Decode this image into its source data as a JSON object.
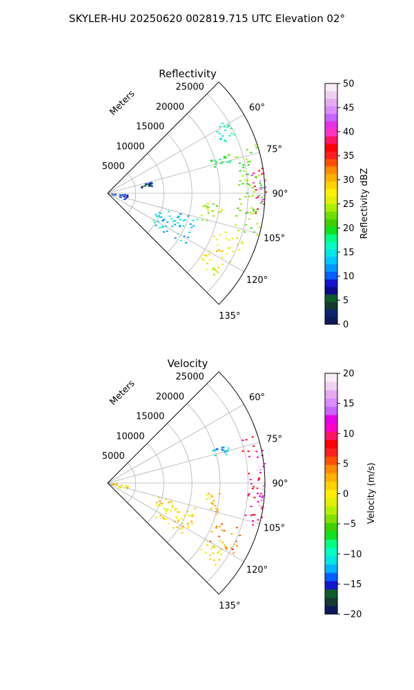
{
  "suptitle": "SKYLER-HU  20250620  002819.715 UTC Elevation 02°",
  "chart_data": [
    {
      "type": "heatmap",
      "projection": "polar-sector",
      "title": "Reflectivity",
      "radial_label": "Meters",
      "range_ticks": [
        5000,
        10000,
        15000,
        20000,
        25000
      ],
      "range_tick_labels": [
        "5000",
        "10000",
        "15000",
        "20000",
        "25000"
      ],
      "rmax": 28000,
      "azimuth_range_deg": [
        45,
        135
      ],
      "azimuth_ticks_deg": [
        60,
        75,
        90,
        105,
        120,
        135
      ],
      "azimuth_tick_labels": [
        "60°",
        "75°",
        "90°",
        "105°",
        "120°",
        "135°"
      ],
      "grid": true,
      "colorbar": {
        "label": "Reflectivity dBZ",
        "min": 0,
        "max": 50,
        "ticks": [
          0,
          5,
          10,
          15,
          20,
          25,
          30,
          35,
          40,
          45,
          50
        ],
        "tick_labels": [
          "0",
          "5",
          "10",
          "15",
          "20",
          "25",
          "30",
          "35",
          "40",
          "45",
          "50"
        ],
        "colors": [
          "#0a1a5a",
          "#0c2470",
          "#123a32",
          "#0f5a2a",
          "#0a0a8a",
          "#1414cc",
          "#0060ff",
          "#0096ff",
          "#00c8ff",
          "#00e6e6",
          "#00ffc0",
          "#00ff80",
          "#10e020",
          "#40d000",
          "#70e000",
          "#a8f000",
          "#e0f000",
          "#fff000",
          "#ffd200",
          "#ffb000",
          "#ff8c00",
          "#ff5000",
          "#ff1e1e",
          "#ff0000",
          "#ff1464",
          "#ff32c8",
          "#e632e6",
          "#c864ff",
          "#dc8cff",
          "#e6aaf0",
          "#f0d2f0",
          "#f8ecf8"
        ]
      },
      "echo_regions": [
        {
          "az": [
            70,
            107
          ],
          "r": [
            23000,
            28000
          ],
          "value": 22
        },
        {
          "az": [
            80,
            98
          ],
          "r": [
            25500,
            28000
          ],
          "value": 38
        },
        {
          "az": [
            85,
            93
          ],
          "r": [
            26500,
            28000
          ],
          "value": 46
        },
        {
          "az": [
            72,
            76
          ],
          "r": [
            19000,
            22500
          ],
          "value": 20
        },
        {
          "az": [
            95,
            106
          ],
          "r": [
            17000,
            21000
          ],
          "value": 24
        },
        {
          "az": [
            108,
            120
          ],
          "r": [
            20000,
            25500
          ],
          "value": 28
        },
        {
          "az": [
            105,
            125
          ],
          "r": [
            9000,
            16500
          ],
          "value": 14
        },
        {
          "az": [
            120,
            128
          ],
          "r": [
            20000,
            24000
          ],
          "value": 26
        },
        {
          "az": [
            75,
            80
          ],
          "r": [
            6000,
            8000
          ],
          "value": 8
        },
        {
          "az": [
            92,
            110
          ],
          "r": [
            500,
            3500
          ],
          "value": 9
        },
        {
          "az": [
            58,
            66
          ],
          "r": [
            22000,
            25000
          ],
          "value": 16
        }
      ]
    },
    {
      "type": "heatmap",
      "projection": "polar-sector",
      "title": "Velocity",
      "radial_label": "Meters",
      "range_ticks": [
        5000,
        10000,
        15000,
        20000,
        25000
      ],
      "range_tick_labels": [
        "5000",
        "10000",
        "15000",
        "20000",
        "25000"
      ],
      "rmax": 28000,
      "azimuth_range_deg": [
        45,
        135
      ],
      "azimuth_ticks_deg": [
        60,
        75,
        90,
        105,
        120,
        135
      ],
      "azimuth_tick_labels": [
        "60°",
        "75°",
        "90°",
        "105°",
        "120°",
        "135°"
      ],
      "grid": true,
      "colorbar": {
        "label": "Velocity (m/s)",
        "min": -20,
        "max": 20,
        "ticks": [
          -20,
          -15,
          -10,
          -5,
          0,
          5,
          10,
          15,
          20
        ],
        "tick_labels": [
          "−20",
          "−15",
          "−10",
          "−5",
          "0",
          "5",
          "10",
          "15",
          "20"
        ],
        "colors": [
          "#0a1a5a",
          "#123a32",
          "#0f5a2a",
          "#1414cc",
          "#0060ff",
          "#00b4ff",
          "#00e6e6",
          "#00ffc0",
          "#00ff80",
          "#10e020",
          "#40d000",
          "#80e000",
          "#b4f000",
          "#e0f000",
          "#fff000",
          "#ffd200",
          "#ffb000",
          "#ff8c00",
          "#ff5000",
          "#ff1e1e",
          "#ff0000",
          "#ff1464",
          "#ff00c8",
          "#e600e6",
          "#c864ff",
          "#dc8cff",
          "#e6aaf0",
          "#f0d2f0",
          "#f8ecf8"
        ]
      },
      "echo_regions": [
        {
          "az": [
            72,
            107
          ],
          "r": [
            24500,
            28000
          ],
          "value": 10
        },
        {
          "az": [
            80,
            100
          ],
          "r": [
            26500,
            28000
          ],
          "value": 16
        },
        {
          "az": [
            72,
            76
          ],
          "r": [
            19000,
            22500
          ],
          "value": -12
        },
        {
          "az": [
            95,
            106
          ],
          "r": [
            17000,
            21000
          ],
          "value": 2
        },
        {
          "az": [
            108,
            120
          ],
          "r": [
            20000,
            25500
          ],
          "value": 4
        },
        {
          "az": [
            105,
            125
          ],
          "r": [
            9000,
            16500
          ],
          "value": 1
        },
        {
          "az": [
            120,
            128
          ],
          "r": [
            20000,
            24000
          ],
          "value": 0
        },
        {
          "az": [
            92,
            110
          ],
          "r": [
            500,
            3500
          ],
          "value": 0
        }
      ]
    }
  ]
}
